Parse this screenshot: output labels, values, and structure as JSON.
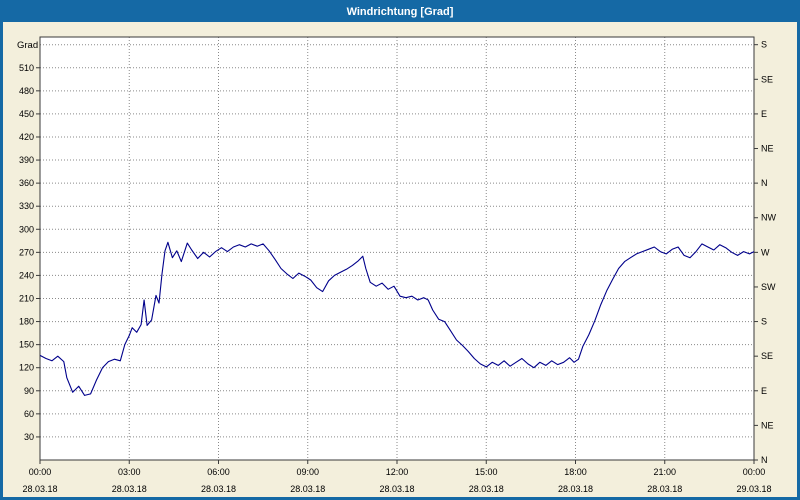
{
  "window": {
    "title": "Windrichtung [Grad]"
  },
  "colors": {
    "titlebar": "#1569a5",
    "frame": "#1569a5",
    "background": "#f3efdc",
    "plot_background": "#ffffff",
    "grid": "#8a8a8a",
    "axis": "#3a3a3a",
    "line": "#00008b"
  },
  "chart_data": {
    "type": "line",
    "title": "Windrichtung [Grad]",
    "xlabel": "",
    "ylabel": "Grad",
    "legend": "none",
    "grid": "dotted",
    "y_axis": {
      "min": 0,
      "max": 550,
      "tick_step": 30,
      "ticks": [
        30,
        60,
        90,
        120,
        150,
        180,
        210,
        240,
        270,
        300,
        330,
        360,
        390,
        420,
        450,
        480,
        510
      ],
      "grid_values": [
        30,
        60,
        90,
        120,
        150,
        180,
        210,
        240,
        270,
        300,
        330,
        360,
        390,
        420,
        450,
        480,
        510,
        540
      ]
    },
    "right_axis": {
      "ticks": [
        {
          "value": 540,
          "label": "S"
        },
        {
          "value": 495,
          "label": "SE"
        },
        {
          "value": 450,
          "label": "E"
        },
        {
          "value": 405,
          "label": "NE"
        },
        {
          "value": 360,
          "label": "N"
        },
        {
          "value": 315,
          "label": "NW"
        },
        {
          "value": 270,
          "label": "W"
        },
        {
          "value": 225,
          "label": "SW"
        },
        {
          "value": 180,
          "label": "S"
        },
        {
          "value": 135,
          "label": "SE"
        },
        {
          "value": 90,
          "label": "E"
        },
        {
          "value": 45,
          "label": "NE"
        },
        {
          "value": 0,
          "label": "N"
        }
      ]
    },
    "x_axis": {
      "min_hour": 0,
      "max_hour": 24,
      "ticks": [
        {
          "hour": 0,
          "time": "00:00",
          "date": "28.03.18"
        },
        {
          "hour": 3,
          "time": "03:00",
          "date": "28.03.18"
        },
        {
          "hour": 6,
          "time": "06:00",
          "date": "28.03.18"
        },
        {
          "hour": 9,
          "time": "09:00",
          "date": "28.03.18"
        },
        {
          "hour": 12,
          "time": "12:00",
          "date": "28.03.18"
        },
        {
          "hour": 15,
          "time": "15:00",
          "date": "28.03.18"
        },
        {
          "hour": 18,
          "time": "18:00",
          "date": "28.03.18"
        },
        {
          "hour": 21,
          "time": "21:00",
          "date": "28.03.18"
        },
        {
          "hour": 24,
          "time": "00:00",
          "date": "29.03.18"
        }
      ]
    },
    "series": [
      {
        "name": "Windrichtung",
        "points": [
          [
            0,
            136
          ],
          [
            0.2,
            132
          ],
          [
            0.4,
            129
          ],
          [
            0.6,
            135
          ],
          [
            0.8,
            128
          ],
          [
            0.9,
            107
          ],
          [
            1.1,
            88
          ],
          [
            1.3,
            96
          ],
          [
            1.5,
            84
          ],
          [
            1.7,
            86
          ],
          [
            1.9,
            104
          ],
          [
            2.1,
            120
          ],
          [
            2.3,
            128
          ],
          [
            2.5,
            131
          ],
          [
            2.7,
            129
          ],
          [
            2.85,
            150
          ],
          [
            3.0,
            162
          ],
          [
            3.1,
            172
          ],
          [
            3.25,
            166
          ],
          [
            3.4,
            176
          ],
          [
            3.5,
            208
          ],
          [
            3.6,
            175
          ],
          [
            3.75,
            182
          ],
          [
            3.9,
            214
          ],
          [
            4.0,
            204
          ],
          [
            4.1,
            242
          ],
          [
            4.2,
            272
          ],
          [
            4.3,
            283
          ],
          [
            4.45,
            263
          ],
          [
            4.6,
            272
          ],
          [
            4.75,
            258
          ],
          [
            4.95,
            282
          ],
          [
            5.1,
            273
          ],
          [
            5.3,
            262
          ],
          [
            5.5,
            270
          ],
          [
            5.7,
            264
          ],
          [
            5.9,
            271
          ],
          [
            6.1,
            276
          ],
          [
            6.3,
            271
          ],
          [
            6.5,
            277
          ],
          [
            6.7,
            280
          ],
          [
            6.9,
            277
          ],
          [
            7.1,
            281
          ],
          [
            7.3,
            278
          ],
          [
            7.5,
            281
          ],
          [
            7.7,
            272
          ],
          [
            7.9,
            261
          ],
          [
            8.1,
            249
          ],
          [
            8.3,
            242
          ],
          [
            8.5,
            236
          ],
          [
            8.7,
            243
          ],
          [
            8.9,
            239
          ],
          [
            9.1,
            234
          ],
          [
            9.3,
            224
          ],
          [
            9.5,
            219
          ],
          [
            9.7,
            233
          ],
          [
            9.9,
            240
          ],
          [
            10.1,
            244
          ],
          [
            10.3,
            248
          ],
          [
            10.5,
            253
          ],
          [
            10.7,
            259
          ],
          [
            10.85,
            265
          ],
          [
            10.95,
            249
          ],
          [
            11.1,
            231
          ],
          [
            11.3,
            226
          ],
          [
            11.5,
            230
          ],
          [
            11.7,
            222
          ],
          [
            11.9,
            226
          ],
          [
            12.1,
            213
          ],
          [
            12.3,
            211
          ],
          [
            12.5,
            213
          ],
          [
            12.7,
            208
          ],
          [
            12.9,
            211
          ],
          [
            13.05,
            208
          ],
          [
            13.2,
            195
          ],
          [
            13.4,
            183
          ],
          [
            13.6,
            180
          ],
          [
            13.8,
            168
          ],
          [
            14.0,
            156
          ],
          [
            14.2,
            149
          ],
          [
            14.4,
            141
          ],
          [
            14.6,
            132
          ],
          [
            14.8,
            125
          ],
          [
            15.0,
            121
          ],
          [
            15.2,
            127
          ],
          [
            15.4,
            123
          ],
          [
            15.6,
            129
          ],
          [
            15.8,
            122
          ],
          [
            16.0,
            127
          ],
          [
            16.2,
            132
          ],
          [
            16.4,
            125
          ],
          [
            16.6,
            120
          ],
          [
            16.8,
            127
          ],
          [
            17.0,
            123
          ],
          [
            17.2,
            129
          ],
          [
            17.4,
            124
          ],
          [
            17.6,
            127
          ],
          [
            17.8,
            133
          ],
          [
            17.95,
            127
          ],
          [
            18.1,
            131
          ],
          [
            18.25,
            148
          ],
          [
            18.45,
            163
          ],
          [
            18.65,
            181
          ],
          [
            18.85,
            202
          ],
          [
            19.05,
            220
          ],
          [
            19.25,
            235
          ],
          [
            19.45,
            249
          ],
          [
            19.65,
            258
          ],
          [
            19.85,
            263
          ],
          [
            20.05,
            268
          ],
          [
            20.25,
            271
          ],
          [
            20.45,
            274
          ],
          [
            20.65,
            277
          ],
          [
            20.85,
            271
          ],
          [
            21.05,
            268
          ],
          [
            21.25,
            274
          ],
          [
            21.45,
            277
          ],
          [
            21.65,
            266
          ],
          [
            21.85,
            263
          ],
          [
            22.05,
            271
          ],
          [
            22.25,
            281
          ],
          [
            22.45,
            277
          ],
          [
            22.65,
            273
          ],
          [
            22.85,
            280
          ],
          [
            23.05,
            276
          ],
          [
            23.25,
            270
          ],
          [
            23.45,
            266
          ],
          [
            23.65,
            271
          ],
          [
            23.85,
            268
          ],
          [
            24,
            271
          ]
        ]
      }
    ]
  }
}
